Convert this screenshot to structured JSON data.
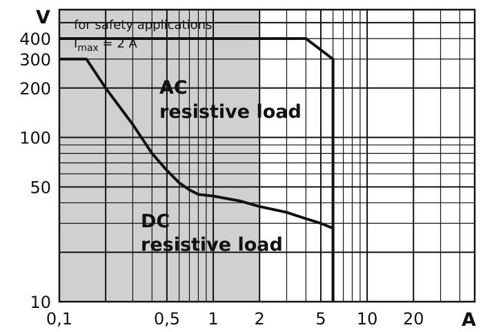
{
  "chart_data": {
    "type": "line",
    "x_scale": "log",
    "y_scale": "log",
    "xlim": [
      0.1,
      50
    ],
    "ylim": [
      10,
      600
    ],
    "grid": true,
    "xlabel": "A",
    "ylabel": "V",
    "x_tick_labels": [
      "0,1",
      "0,5",
      "1",
      "2",
      "5",
      "10",
      "20"
    ],
    "x_ticks": [
      0.1,
      0.5,
      1,
      2,
      5,
      10,
      20
    ],
    "y_tick_labels": [
      "10",
      "50",
      "100",
      "200",
      "300",
      "400"
    ],
    "y_ticks": [
      10,
      50,
      100,
      200,
      300,
      400
    ],
    "shaded_region": {
      "x_range": [
        0.1,
        2
      ],
      "label_line1": "for safety applications",
      "label_line2": "I",
      "label_sub": "max",
      "label_tail": " = 2 A"
    },
    "series": [
      {
        "name_line1": "AC",
        "name_line2": "resistive load",
        "points": [
          [
            0.1,
            400
          ],
          [
            4,
            400
          ],
          [
            6,
            300
          ],
          [
            6,
            10
          ]
        ]
      },
      {
        "name_line1": "DC",
        "name_line2": "resistive load",
        "points": [
          [
            0.1,
            300
          ],
          [
            0.15,
            300
          ],
          [
            0.2,
            200
          ],
          [
            0.3,
            120
          ],
          [
            0.4,
            80
          ],
          [
            0.5,
            63
          ],
          [
            0.6,
            53
          ],
          [
            0.7,
            48
          ],
          [
            0.8,
            45
          ],
          [
            1,
            44
          ],
          [
            1.5,
            41
          ],
          [
            2,
            38
          ],
          [
            3,
            35
          ],
          [
            4,
            32
          ],
          [
            5,
            30
          ],
          [
            6,
            28
          ],
          [
            6,
            10
          ]
        ]
      }
    ]
  }
}
